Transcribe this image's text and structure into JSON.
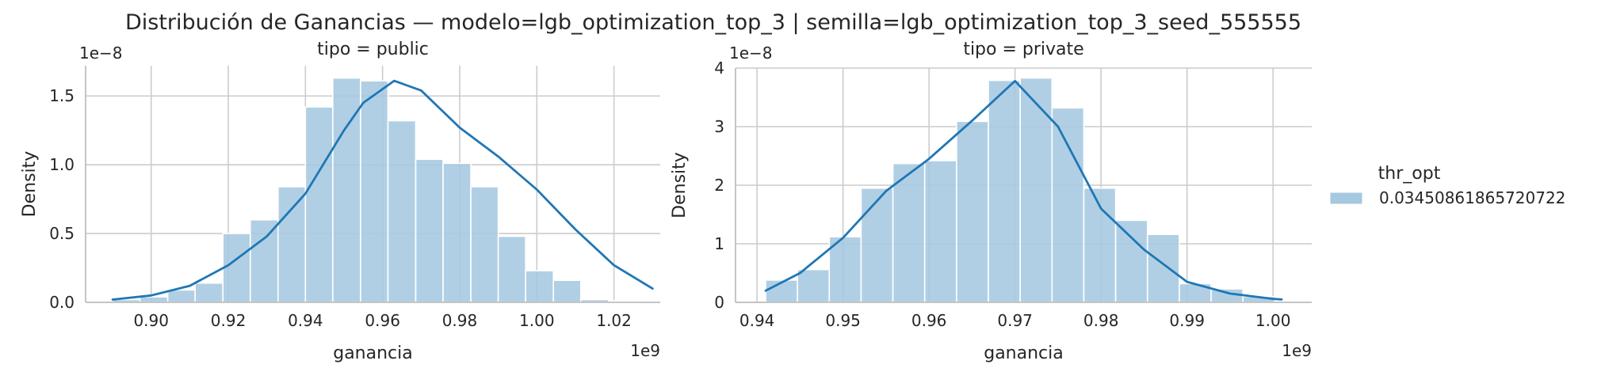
{
  "figure": {
    "title": "Distribución de Ganancias — modelo=lgb_optimization_top_3 | semilla=lgb_optimization_top_3_seed_555555"
  },
  "legend": {
    "title": "thr_opt",
    "entries": [
      {
        "label": "0.03450861865720722",
        "color": "#a6c8e0"
      }
    ],
    "placement": "right"
  },
  "colors": {
    "bar": "#a6c8e0",
    "kde": "#1f77b4",
    "grid": "#cccccc",
    "axis": "#bfbfbf"
  },
  "chart_data": [
    {
      "type": "bar",
      "title": "tipo = public",
      "xlabel": "ganancia",
      "ylabel": "Density",
      "x_offset_label": "1e9",
      "y_offset_label": "1e−8",
      "xlim": [
        0.883,
        1.032
      ],
      "ylim": [
        0,
        1.72
      ],
      "xticks": [
        0.9,
        0.92,
        0.94,
        0.96,
        0.98,
        1.0,
        1.02
      ],
      "xtick_labels": [
        "0.90",
        "0.92",
        "0.94",
        "0.96",
        "0.98",
        "1.00",
        "1.02"
      ],
      "yticks": [
        0.0,
        0.5,
        1.0,
        1.5
      ],
      "ytick_labels": [
        "0.0",
        "0.5",
        "1.0",
        "1.5"
      ],
      "grid": true,
      "bins": {
        "edges": [
          0.89,
          0.8971,
          0.9043,
          0.9114,
          0.9186,
          0.9257,
          0.9329,
          0.94,
          0.9471,
          0.9543,
          0.9614,
          0.9686,
          0.9757,
          0.9829,
          0.99,
          0.9971,
          1.0043,
          1.0114,
          1.0186,
          1.0257
        ],
        "values": [
          0.02,
          0.04,
          0.09,
          0.14,
          0.5,
          0.6,
          0.84,
          1.42,
          1.63,
          1.61,
          1.32,
          1.04,
          1.01,
          0.84,
          0.48,
          0.23,
          0.16,
          0.02,
          0.01
        ]
      },
      "kde": {
        "x": [
          0.89,
          0.9,
          0.91,
          0.92,
          0.93,
          0.94,
          0.95,
          0.955,
          0.963,
          0.97,
          0.98,
          0.99,
          1.0,
          1.01,
          1.02,
          1.03
        ],
        "y": [
          0.02,
          0.05,
          0.12,
          0.27,
          0.48,
          0.79,
          1.25,
          1.45,
          1.61,
          1.54,
          1.27,
          1.06,
          0.82,
          0.53,
          0.27,
          0.1
        ]
      }
    },
    {
      "type": "bar",
      "title": "tipo = private",
      "xlabel": "ganancia",
      "ylabel": "Density",
      "x_offset_label": "1e9",
      "y_offset_label": "1e−8",
      "xlim": [
        0.9375,
        1.0045
      ],
      "ylim": [
        0,
        4.0
      ],
      "xticks": [
        0.94,
        0.95,
        0.96,
        0.97,
        0.98,
        0.99,
        1.0
      ],
      "xtick_labels": [
        "0.94",
        "0.95",
        "0.96",
        "0.97",
        "0.98",
        "0.99",
        "1.00"
      ],
      "yticks": [
        0,
        1,
        2,
        3,
        4
      ],
      "ytick_labels": [
        "0",
        "1",
        "2",
        "3",
        "4"
      ],
      "grid": true,
      "bins": {
        "edges": [
          0.941,
          0.9447,
          0.9484,
          0.9521,
          0.9558,
          0.9595,
          0.9632,
          0.9669,
          0.9706,
          0.9743,
          0.978,
          0.9817,
          0.9854,
          0.9891,
          0.9928,
          0.9965,
          1.0002
        ],
        "values": [
          0.38,
          0.56,
          1.12,
          1.95,
          2.37,
          2.42,
          3.09,
          3.79,
          3.83,
          3.32,
          1.95,
          1.4,
          1.16,
          0.32,
          0.23,
          0.1
        ]
      },
      "kde": {
        "x": [
          0.941,
          0.945,
          0.95,
          0.955,
          0.96,
          0.965,
          0.97,
          0.975,
          0.98,
          0.985,
          0.99,
          0.995,
          1.0,
          1.001
        ],
        "y": [
          0.2,
          0.5,
          1.1,
          1.9,
          2.45,
          3.1,
          3.78,
          3.0,
          1.6,
          0.9,
          0.35,
          0.15,
          0.06,
          0.05
        ]
      }
    }
  ]
}
